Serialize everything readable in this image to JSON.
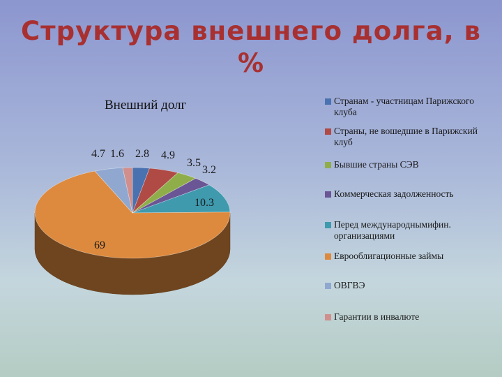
{
  "slide": {
    "title_line1": "Структура внешнего долга, в",
    "title_line2": "%"
  },
  "chart_data": {
    "type": "pie",
    "title": "Внешний долг",
    "legend_position": "right",
    "slices": [
      {
        "name": "Странам - участницам Парижского клуба",
        "value": 2.8,
        "label": "2.8",
        "color": "#4a72b0"
      },
      {
        "name": "Страны, не вошедшие в Парижский клуб",
        "value": 4.9,
        "label": "4.9",
        "color": "#b04a45"
      },
      {
        "name": "Бывшие страны СЭВ",
        "value": 3.5,
        "label": "3.5",
        "color": "#8fae4a"
      },
      {
        "name": "Коммерческая задолженность",
        "value": 3.2,
        "label": "3.2",
        "color": "#6a5595"
      },
      {
        "name": "Перед международнымифин. организациями",
        "value": 10.3,
        "label": "10.3",
        "color": "#3f9aae"
      },
      {
        "name": "Еврооблигационные займы",
        "value": 69,
        "label": "69",
        "color": "#dd8a3e"
      },
      {
        "name": "ОВГВЭ",
        "value": 4.7,
        "label": "4.7",
        "color": "#90a8d0"
      },
      {
        "name": "Гарантии в инвалюте",
        "value": 1.6,
        "label": "1.6",
        "color": "#d08f8d"
      }
    ]
  }
}
